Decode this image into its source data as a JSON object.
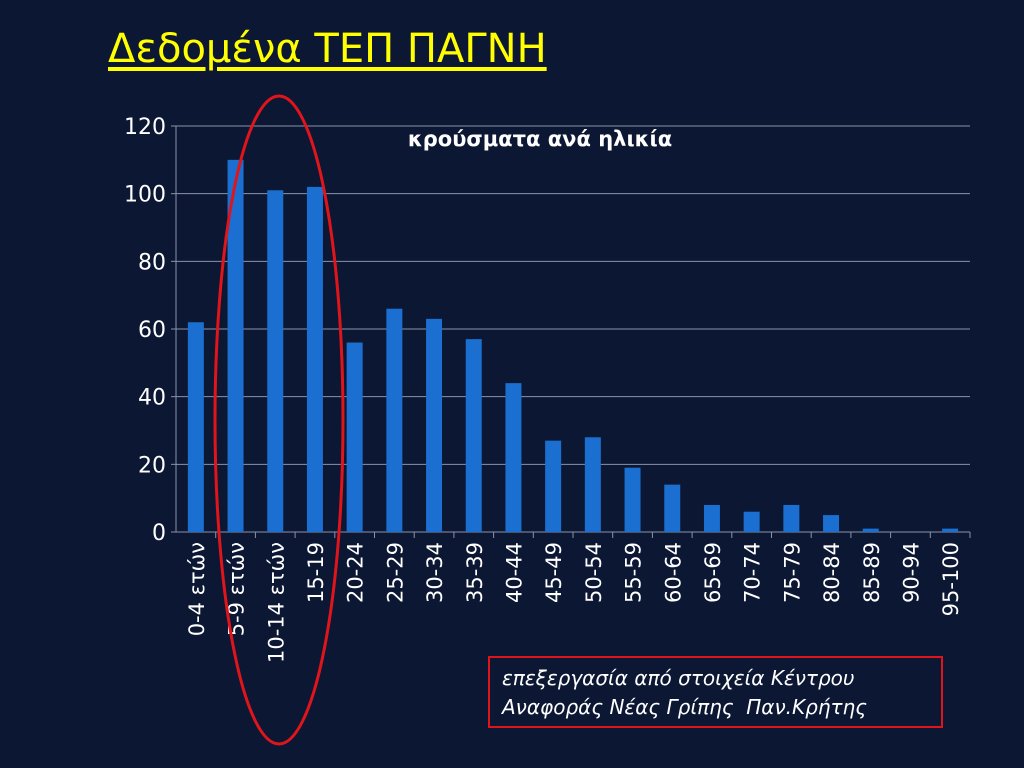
{
  "slide": {
    "title": "Δεδομένα ΤΕΠ ΠΑΓΝΗ",
    "source_line1": "επεξεργασία από στοιχεία Κέντρου",
    "source_line2": "Αναφοράς Νέας Γρίπης  Παν.Κρήτης"
  },
  "colors": {
    "background": "#0c1733",
    "bars": "#1a6fd0",
    "title": "#ffff00",
    "highlight": "#e0151b",
    "text": "#ffffff"
  },
  "chart_data": {
    "type": "bar",
    "title": "κρούσματα ανά ηλικία",
    "categories": [
      "0-4 ετών",
      "5-9 ετών",
      "10-14 ετών",
      "15-19",
      "20-24",
      "25-29",
      "30-34",
      "35-39",
      "40-44",
      "45-49",
      "50-54",
      "55-59",
      "60-64",
      "65-69",
      "70-74",
      "75-79",
      "80-84",
      "85-89",
      "90-94",
      "95-100"
    ],
    "values": [
      62,
      110,
      101,
      102,
      56,
      66,
      63,
      57,
      44,
      27,
      28,
      19,
      14,
      8,
      6,
      8,
      5,
      1,
      0,
      1
    ],
    "ylim": [
      0,
      120
    ],
    "yticks": [
      0,
      20,
      40,
      60,
      80,
      100,
      120
    ],
    "grid": true,
    "legend": "none",
    "highlighted_categories": [
      "5-9 ετών",
      "10-14 ετών",
      "15-19"
    ]
  }
}
